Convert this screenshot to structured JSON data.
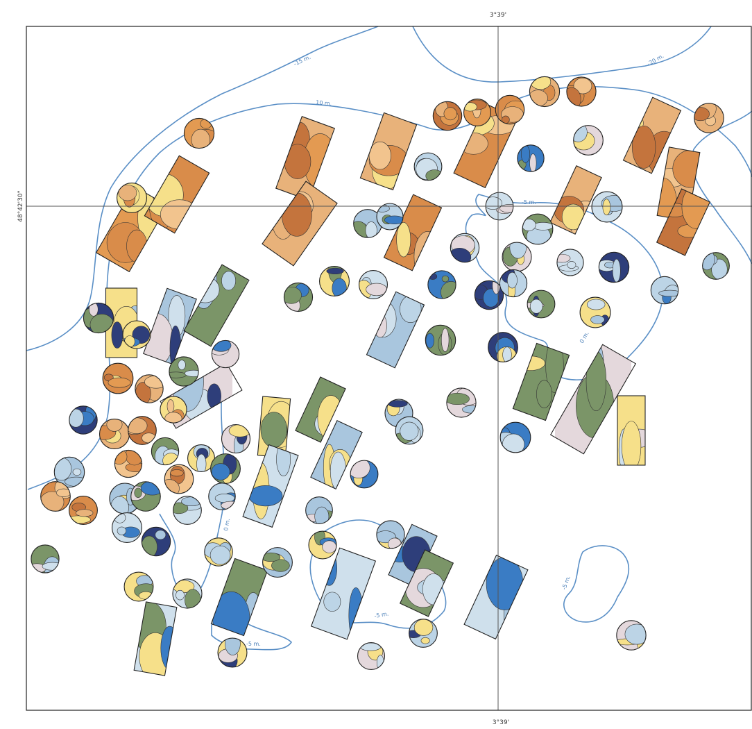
{
  "coordinates": {
    "top": "3°39'",
    "bottom": "3°39'",
    "left": "48°42'30\""
  },
  "contour_labels": [
    "-15 m.",
    "10 m.",
    "-20 m.",
    "-5 m.",
    "0 m.",
    "0 m.",
    "-5 m.",
    "-5 m.",
    "-5 m."
  ]
}
